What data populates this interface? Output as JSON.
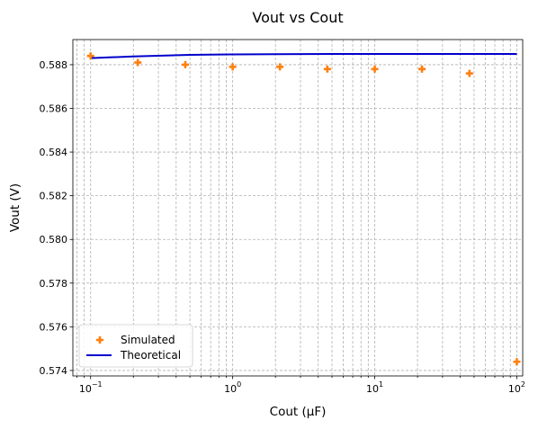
{
  "chart_data": {
    "type": "scatter",
    "title": "Vout vs Cout",
    "xlabel": "Cout (μF)",
    "ylabel": "Vout (V)",
    "xscale": "log",
    "xlim": [
      0.075,
      110
    ],
    "ylim": [
      0.57375,
      0.58915
    ],
    "x_ticks": [
      {
        "value": 0.1,
        "base": "10",
        "exp": "−1"
      },
      {
        "value": 1,
        "base": "10",
        "exp": "0"
      },
      {
        "value": 10,
        "base": "10",
        "exp": "1"
      },
      {
        "value": 100,
        "base": "10",
        "exp": "2"
      }
    ],
    "y_ticks": [
      0.574,
      0.576,
      0.578,
      0.58,
      0.582,
      0.584,
      0.586,
      0.588
    ],
    "y_tick_labels": [
      "0.574",
      "0.576",
      "0.578",
      "0.580",
      "0.582",
      "0.584",
      "0.586",
      "0.588"
    ],
    "grid": true,
    "grid_minor": true,
    "legend_position": "lower-left",
    "series": [
      {
        "name": "Simulated",
        "kind": "scatter",
        "marker": "plus",
        "color": "#ff7f0e",
        "x": [
          0.1,
          0.215,
          0.464,
          1.0,
          2.15,
          4.64,
          10.0,
          21.5,
          46.4,
          100
        ],
        "y": [
          0.5884,
          0.5881,
          0.588,
          0.5879,
          0.5879,
          0.5878,
          0.5878,
          0.5878,
          0.5876,
          0.5744
        ]
      },
      {
        "name": "Theoretical",
        "kind": "line",
        "color": "#0000cc",
        "x": [
          0.1,
          0.2,
          0.5,
          1,
          2,
          5,
          10,
          20,
          50,
          100
        ],
        "y": [
          0.5883,
          0.58838,
          0.58845,
          0.58847,
          0.58848,
          0.58849,
          0.58849,
          0.58849,
          0.58849,
          0.58849
        ]
      }
    ]
  }
}
